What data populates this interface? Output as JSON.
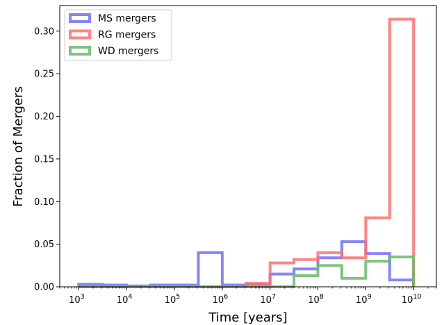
{
  "chart_data": {
    "type": "histogram",
    "xlabel": "Time [years]",
    "ylabel": "Fraction of Mergers",
    "xscale": "log",
    "xlim": [
      400,
      30000000000
    ],
    "ylim": [
      0,
      0.33
    ],
    "xticks": [
      {
        "value": 1000,
        "base": "10",
        "exp": "3"
      },
      {
        "value": 10000,
        "base": "10",
        "exp": "4"
      },
      {
        "value": 100000,
        "base": "10",
        "exp": "5"
      },
      {
        "value": 1000000,
        "base": "10",
        "exp": "6"
      },
      {
        "value": 10000000,
        "base": "10",
        "exp": "7"
      },
      {
        "value": 100000000,
        "base": "10",
        "exp": "8"
      },
      {
        "value": 1000000000,
        "base": "10",
        "exp": "9"
      },
      {
        "value": 10000000000,
        "base": "10",
        "exp": "10"
      }
    ],
    "yticks": [
      {
        "value": 0.0,
        "label": "0.00"
      },
      {
        "value": 0.05,
        "label": "0.05"
      },
      {
        "value": 0.1,
        "label": "0.10"
      },
      {
        "value": 0.15,
        "label": "0.15"
      },
      {
        "value": 0.2,
        "label": "0.20"
      },
      {
        "value": 0.25,
        "label": "0.25"
      },
      {
        "value": 0.3,
        "label": "0.30"
      }
    ],
    "legend_position": "top-left",
    "bin_edges": [
      1000,
      3162,
      10000,
      31623,
      100000,
      316228,
      1000000,
      3162278,
      10000000,
      31622777,
      100000000,
      316227766,
      1000000000,
      3162277660,
      10000000000
    ],
    "series": [
      {
        "name": "MS mergers",
        "color": "#7070ff",
        "values": [
          0.003,
          0.002,
          0.001,
          0.002,
          0.002,
          0.04,
          0.002,
          0.003,
          0.015,
          0.021,
          0.034,
          0.053,
          0.039,
          0.008
        ]
      },
      {
        "name": "RG mergers",
        "color": "#ff6f6f",
        "values": [
          0.0,
          0.0,
          0.0,
          0.0,
          0.0,
          0.0,
          0.0,
          0.004,
          0.028,
          0.032,
          0.04,
          0.034,
          0.081,
          0.314
        ]
      },
      {
        "name": "WD mergers",
        "color": "#6ab86a",
        "values": [
          0.0,
          0.0,
          0.0,
          0.0,
          0.0,
          0.0,
          0.0,
          0.0,
          0.0,
          0.013,
          0.025,
          0.01,
          0.03,
          0.035
        ]
      }
    ]
  }
}
